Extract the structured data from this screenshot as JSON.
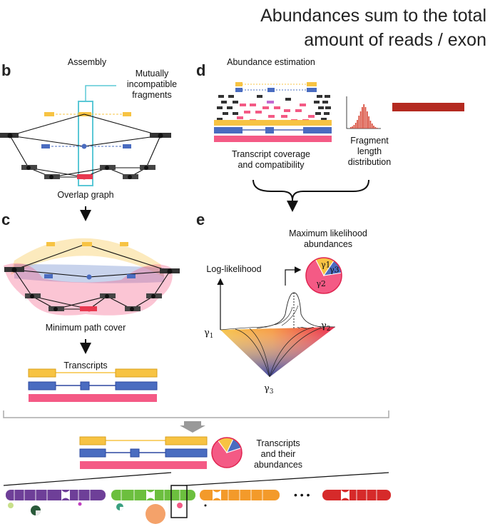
{
  "header": {
    "line1": "Abundances sum to the total",
    "line2": "amount of reads / exon"
  },
  "panels": {
    "b": {
      "letter": "b",
      "title": "Assembly",
      "callout": [
        "Mutually",
        "incompatible",
        "fragments"
      ],
      "caption": "Overlap graph"
    },
    "c": {
      "letter": "c",
      "caption": "Minimum path cover",
      "transcripts_title": "Transcripts"
    },
    "d": {
      "letter": "d",
      "title": "Abundance estimation",
      "coverage_caption": [
        "Transcript coverage",
        "and compatibility"
      ],
      "fragment_caption": [
        "Fragment",
        "length",
        "distribution"
      ]
    },
    "e": {
      "letter": "e",
      "ml_title": [
        "Maximum likelihood",
        "abundances"
      ],
      "y_axis_label": "Log-likelihood",
      "gamma1": "γ",
      "gamma2": "γ",
      "gamma3": "γ",
      "sub1": "1",
      "sub2": "2",
      "sub3": "3"
    }
  },
  "bottom": {
    "caption": [
      "Transcripts",
      "and their",
      "abundances"
    ],
    "ellipsis": "• • •"
  },
  "colors": {
    "yellow": "#f7c343",
    "blue": "#4a6cc0",
    "pink": "#f45a85",
    "red_dark": "#b42a20",
    "cyan": "#5bc8d6",
    "chrom_purple": "#6e3f98",
    "chrom_green": "#6cbf3e",
    "chrom_orange": "#f39a2a",
    "chrom_red": "#d62a2a"
  },
  "pie": {
    "slices": [
      {
        "label": "γ2",
        "fraction": 0.7,
        "color": "#f45a85"
      },
      {
        "label": "γ1",
        "fraction": 0.17,
        "color": "#f7c343"
      },
      {
        "label": "γ3",
        "fraction": 0.13,
        "color": "#4a6cc0"
      }
    ]
  }
}
